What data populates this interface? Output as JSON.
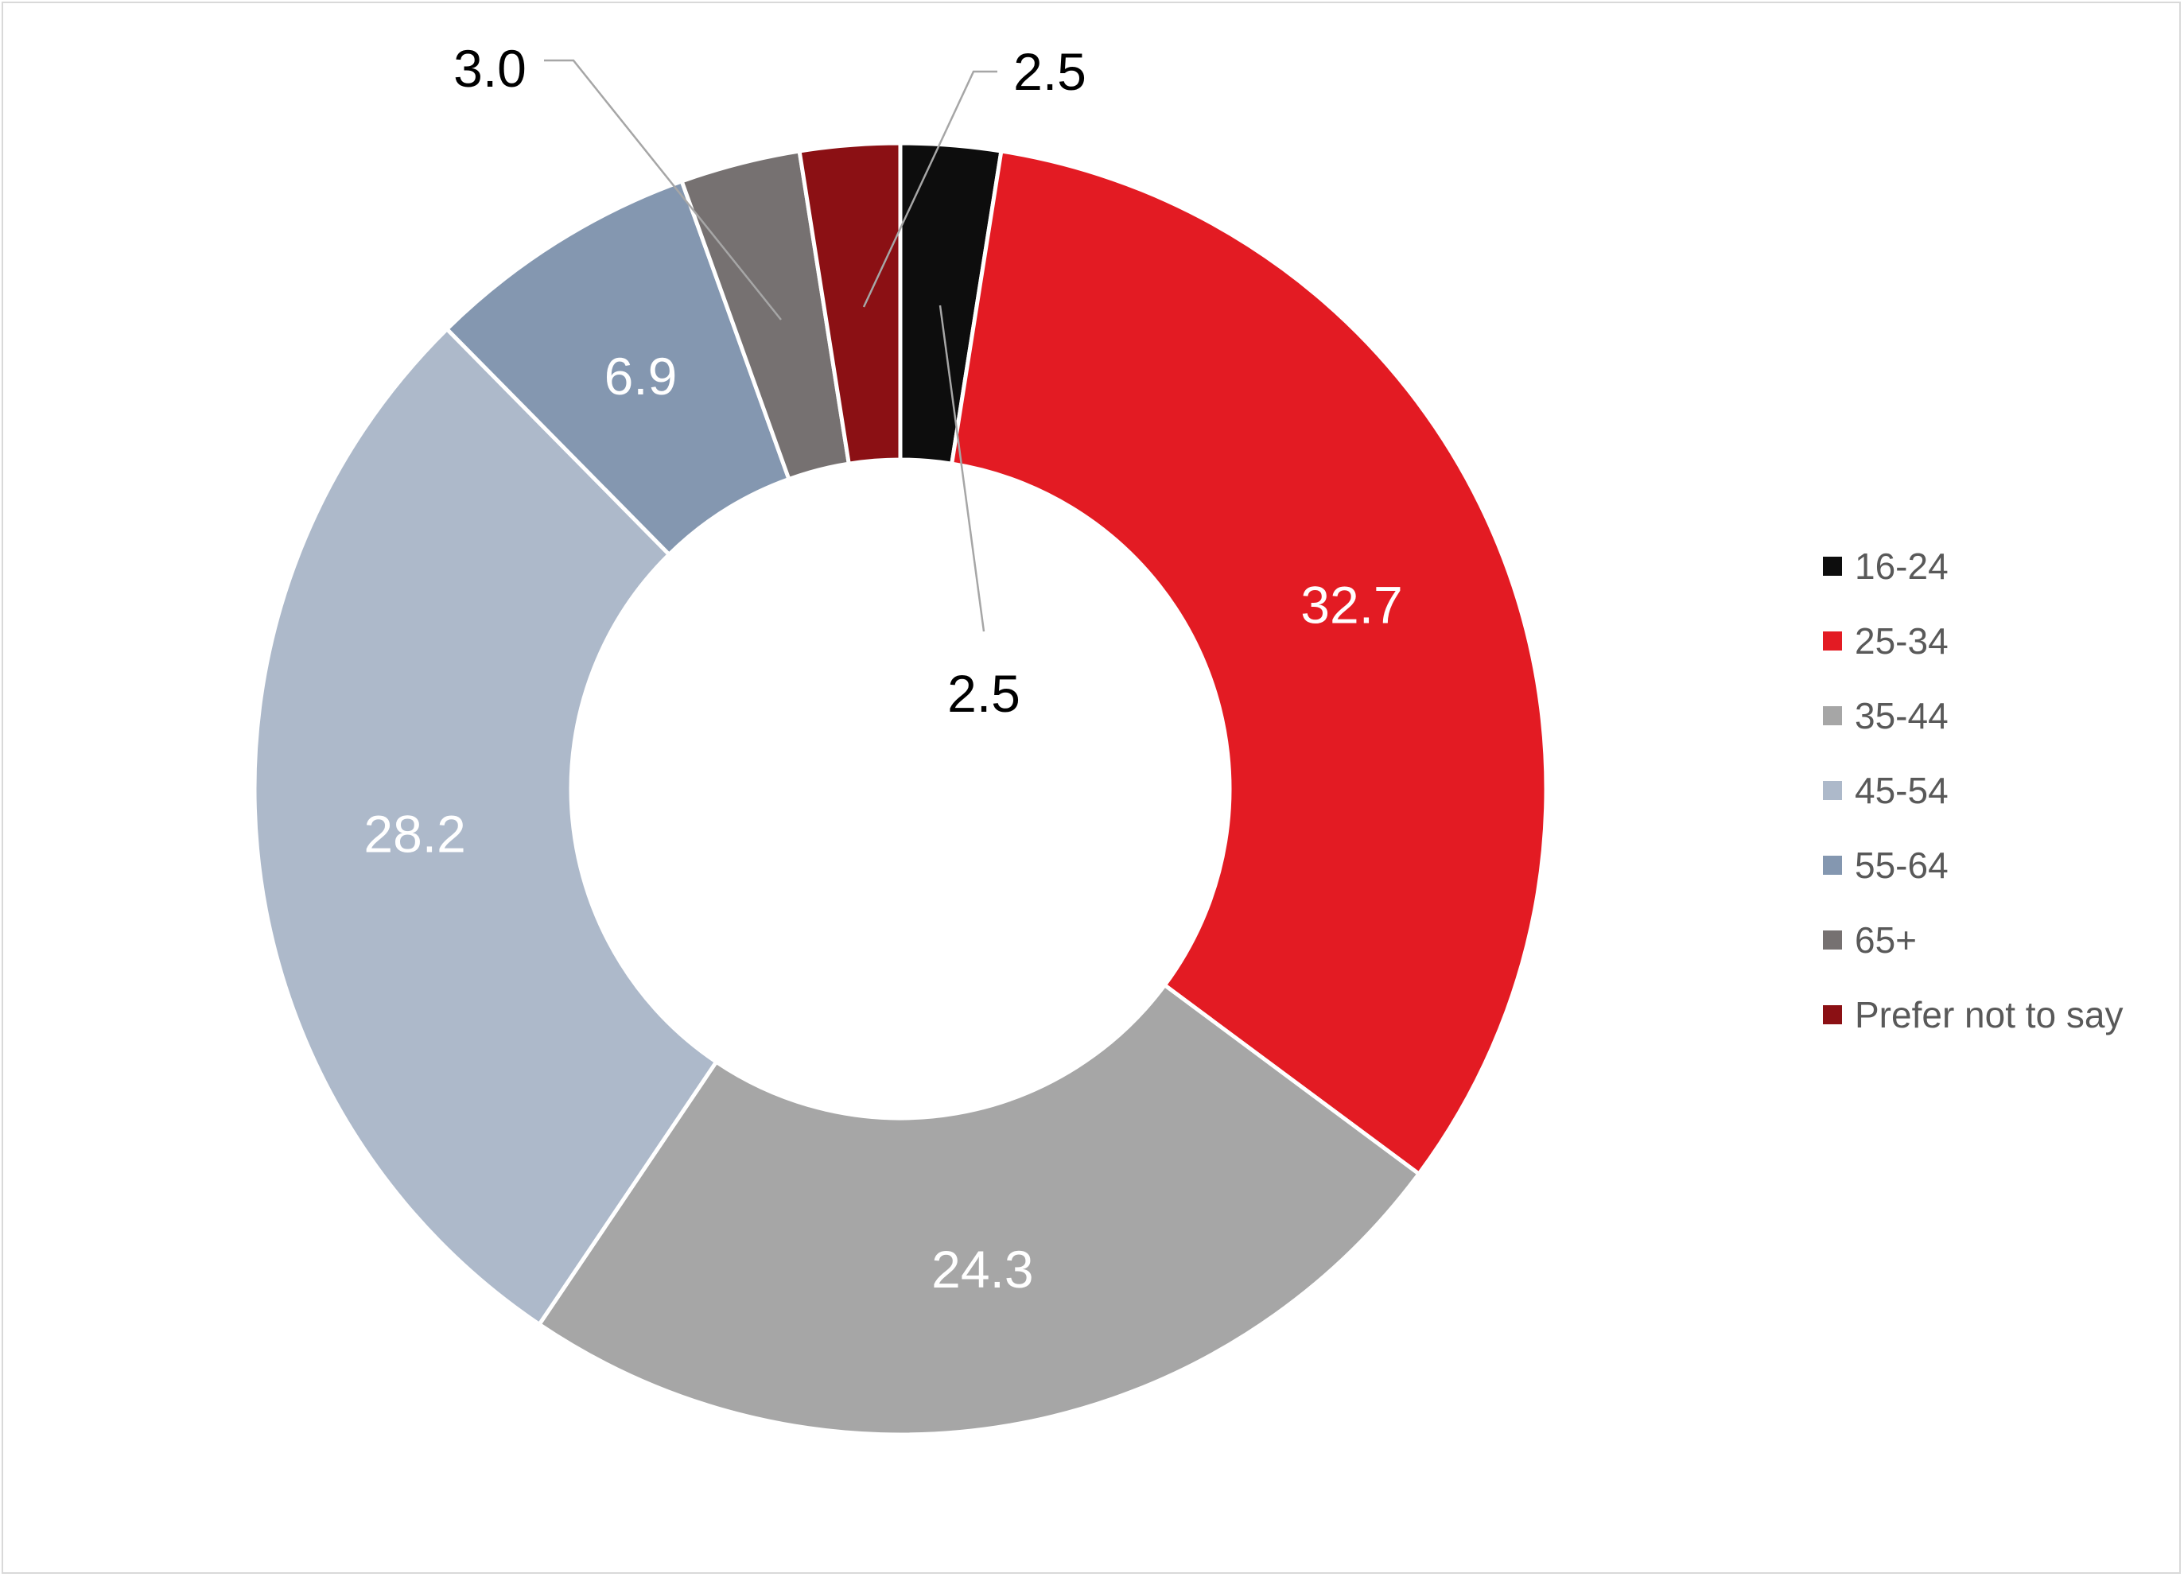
{
  "chart_data": {
    "type": "pie",
    "variant": "donut",
    "title": "",
    "legend_position": "right",
    "categories": [
      "16-24",
      "25-34",
      "35-44",
      "45-54",
      "55-64",
      "65+",
      "Prefer not to say"
    ],
    "values": [
      2.5,
      32.7,
      24.3,
      28.2,
      6.9,
      3.0,
      2.5
    ],
    "data_labels": [
      "2.5",
      "32.7",
      "24.3",
      "28.2",
      "6.9",
      "3.0",
      "2.5"
    ],
    "colors": [
      "#0d0d0d",
      "#e31b23",
      "#a6a6a6",
      "#adb9ca",
      "#8497b0",
      "#767171",
      "#8b1014"
    ]
  }
}
